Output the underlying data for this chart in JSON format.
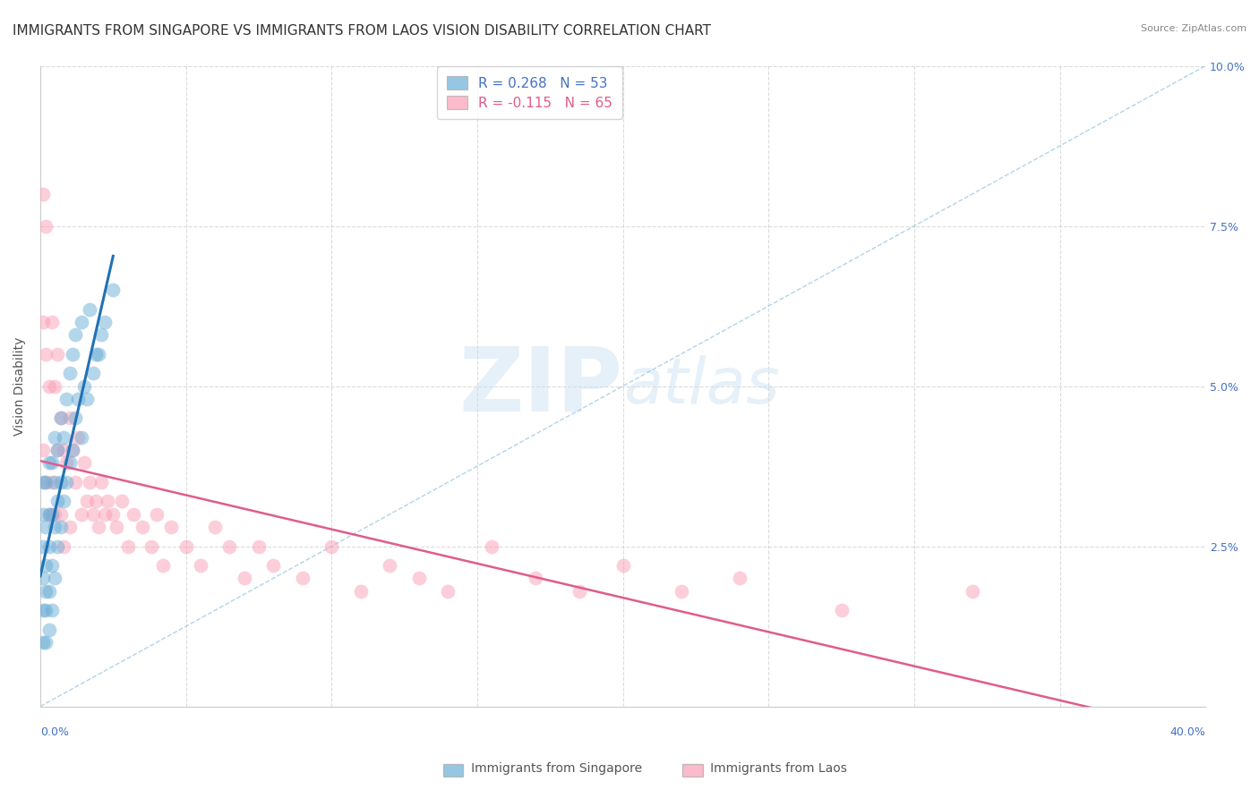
{
  "title": "IMMIGRANTS FROM SINGAPORE VS IMMIGRANTS FROM LAOS VISION DISABILITY CORRELATION CHART",
  "source": "Source: ZipAtlas.com",
  "ylabel": "Vision Disability",
  "ylim": [
    0,
    0.1
  ],
  "xlim": [
    0,
    0.4
  ],
  "yticks": [
    0,
    0.025,
    0.05,
    0.075,
    0.1
  ],
  "ytick_labels": [
    "",
    "2.5%",
    "5.0%",
    "7.5%",
    "10.0%"
  ],
  "legend1_label": "R = 0.268   N = 53",
  "legend2_label": "R = -0.115   N = 65",
  "singapore_color": "#6baed6",
  "laos_color": "#fa9fb5",
  "singapore_x": [
    0.001,
    0.001,
    0.001,
    0.001,
    0.001,
    0.001,
    0.002,
    0.002,
    0.002,
    0.002,
    0.002,
    0.002,
    0.003,
    0.003,
    0.003,
    0.003,
    0.003,
    0.004,
    0.004,
    0.004,
    0.004,
    0.005,
    0.005,
    0.005,
    0.005,
    0.006,
    0.006,
    0.006,
    0.007,
    0.007,
    0.007,
    0.008,
    0.008,
    0.009,
    0.009,
    0.01,
    0.01,
    0.011,
    0.011,
    0.012,
    0.012,
    0.013,
    0.014,
    0.014,
    0.015,
    0.016,
    0.017,
    0.018,
    0.019,
    0.02,
    0.021,
    0.022,
    0.025
  ],
  "singapore_y": [
    0.01,
    0.015,
    0.02,
    0.025,
    0.03,
    0.035,
    0.01,
    0.015,
    0.018,
    0.022,
    0.028,
    0.035,
    0.012,
    0.018,
    0.025,
    0.03,
    0.038,
    0.015,
    0.022,
    0.03,
    0.038,
    0.02,
    0.028,
    0.035,
    0.042,
    0.025,
    0.032,
    0.04,
    0.028,
    0.035,
    0.045,
    0.032,
    0.042,
    0.035,
    0.048,
    0.038,
    0.052,
    0.04,
    0.055,
    0.045,
    0.058,
    0.048,
    0.042,
    0.06,
    0.05,
    0.048,
    0.062,
    0.052,
    0.055,
    0.055,
    0.058,
    0.06,
    0.065
  ],
  "laos_x": [
    0.001,
    0.001,
    0.001,
    0.002,
    0.002,
    0.002,
    0.003,
    0.003,
    0.004,
    0.004,
    0.005,
    0.005,
    0.006,
    0.006,
    0.007,
    0.007,
    0.008,
    0.008,
    0.009,
    0.01,
    0.01,
    0.011,
    0.012,
    0.013,
    0.014,
    0.015,
    0.016,
    0.017,
    0.018,
    0.019,
    0.02,
    0.021,
    0.022,
    0.023,
    0.025,
    0.026,
    0.028,
    0.03,
    0.032,
    0.035,
    0.038,
    0.04,
    0.042,
    0.045,
    0.05,
    0.055,
    0.06,
    0.065,
    0.07,
    0.075,
    0.08,
    0.09,
    0.1,
    0.11,
    0.12,
    0.13,
    0.14,
    0.155,
    0.17,
    0.185,
    0.2,
    0.22,
    0.24,
    0.275,
    0.32
  ],
  "laos_y": [
    0.08,
    0.06,
    0.04,
    0.075,
    0.055,
    0.035,
    0.05,
    0.03,
    0.06,
    0.035,
    0.05,
    0.03,
    0.055,
    0.04,
    0.045,
    0.03,
    0.04,
    0.025,
    0.038,
    0.045,
    0.028,
    0.04,
    0.035,
    0.042,
    0.03,
    0.038,
    0.032,
    0.035,
    0.03,
    0.032,
    0.028,
    0.035,
    0.03,
    0.032,
    0.03,
    0.028,
    0.032,
    0.025,
    0.03,
    0.028,
    0.025,
    0.03,
    0.022,
    0.028,
    0.025,
    0.022,
    0.028,
    0.025,
    0.02,
    0.025,
    0.022,
    0.02,
    0.025,
    0.018,
    0.022,
    0.02,
    0.018,
    0.025,
    0.02,
    0.018,
    0.022,
    0.018,
    0.02,
    0.015,
    0.018
  ],
  "background_color": "#ffffff",
  "grid_color": "#cccccc",
  "watermark_zip": "ZIP",
  "watermark_atlas": "atlas",
  "title_fontsize": 11,
  "axis_label_fontsize": 10,
  "tick_fontsize": 9
}
